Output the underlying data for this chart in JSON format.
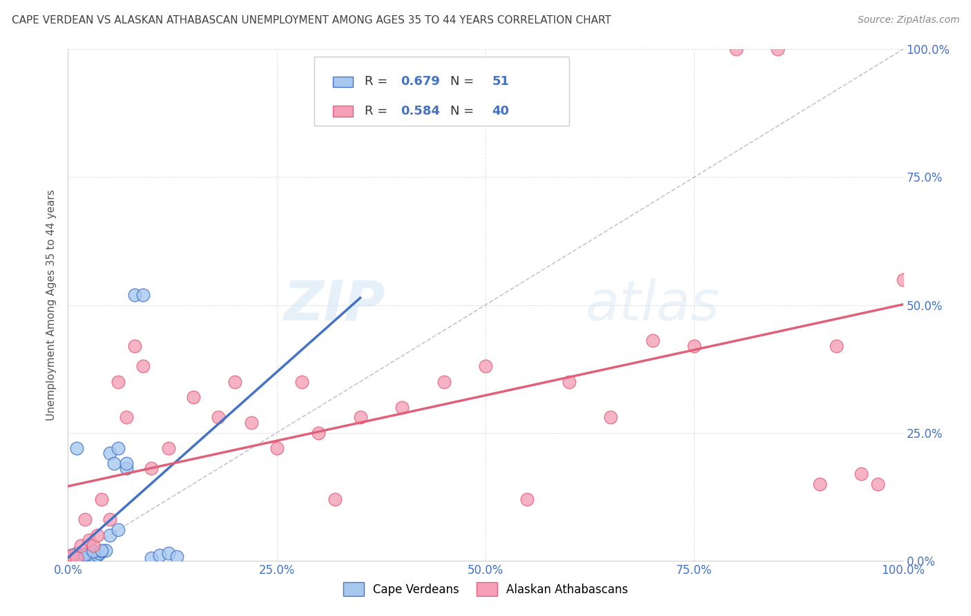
{
  "title": "CAPE VERDEAN VS ALASKAN ATHABASCAN UNEMPLOYMENT AMONG AGES 35 TO 44 YEARS CORRELATION CHART",
  "source": "Source: ZipAtlas.com",
  "ylabel": "Unemployment Among Ages 35 to 44 years",
  "watermark_zip": "ZIP",
  "watermark_atlas": "atlas",
  "legend_cv_R": "0.679",
  "legend_cv_N": "51",
  "legend_at_R": "0.584",
  "legend_at_N": "40",
  "cv_color": "#a8c8f0",
  "cv_edge": "#4472c4",
  "at_color": "#f5a0b8",
  "at_edge": "#e0607a",
  "bg_color": "#ffffff",
  "grid_color": "#cccccc",
  "title_color": "#404040",
  "source_color": "#888888",
  "axis_label_color": "#4472c4",
  "diag_color": "#b0b8c8",
  "cv_line_color": "#4472c4",
  "at_line_color": "#e0607a",
  "cape_verdean_x": [
    0.0,
    0.002,
    0.003,
    0.004,
    0.005,
    0.005,
    0.006,
    0.007,
    0.008,
    0.008,
    0.009,
    0.01,
    0.01,
    0.011,
    0.012,
    0.013,
    0.014,
    0.015,
    0.015,
    0.016,
    0.017,
    0.018,
    0.02,
    0.02,
    0.022,
    0.025,
    0.025,
    0.028,
    0.03,
    0.032,
    0.035,
    0.038,
    0.04,
    0.045,
    0.05,
    0.055,
    0.06,
    0.07,
    0.08,
    0.09,
    0.1,
    0.11,
    0.12,
    0.13,
    0.05,
    0.06,
    0.07,
    0.02,
    0.03,
    0.04,
    0.01
  ],
  "cape_verdean_y": [
    0.005,
    0.005,
    0.008,
    0.01,
    0.005,
    0.008,
    0.01,
    0.005,
    0.008,
    0.01,
    0.005,
    0.008,
    0.015,
    0.005,
    0.01,
    0.008,
    0.005,
    0.01,
    0.005,
    0.008,
    0.01,
    0.005,
    0.01,
    0.008,
    0.015,
    0.01,
    0.015,
    0.02,
    0.015,
    0.008,
    0.01,
    0.015,
    0.018,
    0.02,
    0.21,
    0.19,
    0.22,
    0.18,
    0.52,
    0.52,
    0.005,
    0.01,
    0.015,
    0.008,
    0.05,
    0.06,
    0.19,
    0.012,
    0.018,
    0.02,
    0.22
  ],
  "athabascan_x": [
    0.0,
    0.005,
    0.01,
    0.015,
    0.02,
    0.025,
    0.03,
    0.035,
    0.04,
    0.05,
    0.06,
    0.07,
    0.08,
    0.09,
    0.1,
    0.12,
    0.15,
    0.18,
    0.2,
    0.25,
    0.3,
    0.35,
    0.4,
    0.45,
    0.5,
    0.55,
    0.6,
    0.65,
    0.7,
    0.75,
    0.8,
    0.85,
    0.9,
    0.92,
    0.95,
    0.97,
    1.0,
    0.22,
    0.28,
    0.32
  ],
  "athabascan_y": [
    0.005,
    0.01,
    0.005,
    0.03,
    0.08,
    0.04,
    0.03,
    0.05,
    0.12,
    0.08,
    0.35,
    0.28,
    0.42,
    0.38,
    0.18,
    0.22,
    0.32,
    0.28,
    0.35,
    0.22,
    0.25,
    0.28,
    0.3,
    0.35,
    0.38,
    0.12,
    0.35,
    0.28,
    0.43,
    0.42,
    1.0,
    1.0,
    0.15,
    0.42,
    0.17,
    0.15,
    0.55,
    0.27,
    0.35,
    0.12
  ],
  "xtick_pos": [
    0.0,
    0.25,
    0.5,
    0.75,
    1.0
  ],
  "xtick_labels": [
    "0.0%",
    "25.0%",
    "50.0%",
    "75.0%",
    "100.0%"
  ],
  "ytick_pos": [
    0.0,
    0.25,
    0.5,
    0.75,
    1.0
  ],
  "ytick_right_labels": [
    "0.0%",
    "25.0%",
    "50.0%",
    "75.0%",
    "100.0%"
  ]
}
